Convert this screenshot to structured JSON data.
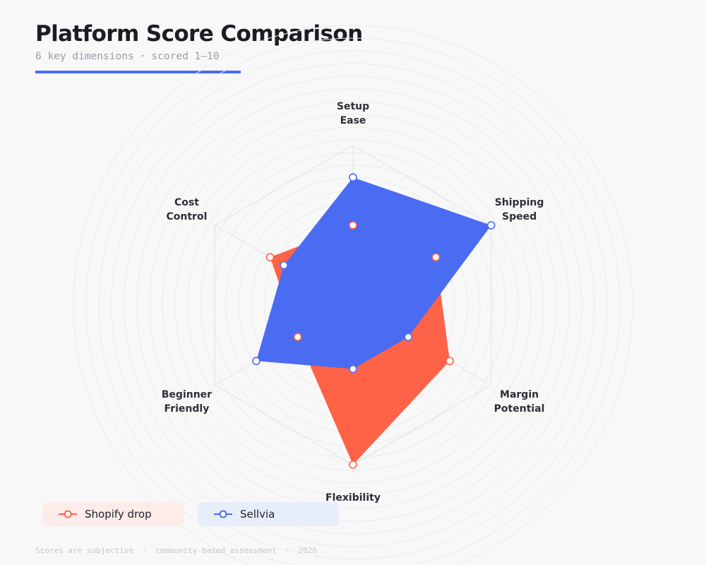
{
  "header": {
    "title": "Platform Score Comparison",
    "subtitle_left": "6 key dimensions",
    "subtitle_sep": "·",
    "subtitle_right": "scored 1–10"
  },
  "chart_data": {
    "type": "radar",
    "axes": [
      {
        "lines": [
          "Setup",
          "Ease"
        ]
      },
      {
        "lines": [
          "Shipping",
          "Speed"
        ]
      },
      {
        "lines": [
          "Margin",
          "Potential"
        ]
      },
      {
        "lines": [
          "Flexibility"
        ]
      },
      {
        "lines": [
          "Beginner",
          "Friendly"
        ]
      },
      {
        "lines": [
          "Cost",
          "Control"
        ]
      }
    ],
    "range": [
      0,
      10
    ],
    "series": [
      {
        "name": "Shopify drop",
        "color": "#ff6347",
        "values": [
          5,
          6,
          7,
          10,
          4,
          6
        ]
      },
      {
        "name": "Sellvia",
        "color": "#4a6cf2",
        "values": [
          8,
          10,
          4,
          4,
          7,
          5
        ]
      }
    ],
    "grid": true,
    "legend_position": "bottom-left"
  },
  "footer": {
    "parts": [
      "Scores are subjective",
      "·",
      "community-based assessment",
      "·",
      "2026"
    ]
  }
}
